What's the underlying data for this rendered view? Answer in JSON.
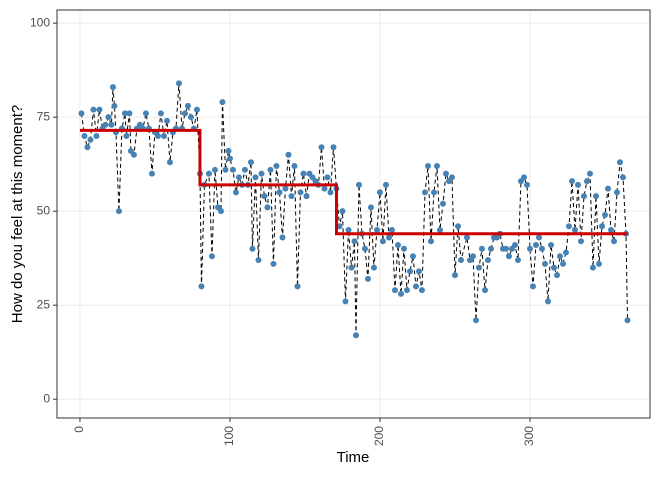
{
  "chart_data": {
    "type": "line",
    "x_label": "Time",
    "y_label": "How do you feel at this moment?",
    "xlim": [
      -15.3,
      380
    ],
    "ylim": [
      -5,
      103.5
    ],
    "xticks": [
      0,
      100,
      200,
      300
    ],
    "yticks": [
      0,
      25,
      50,
      75,
      100
    ],
    "grid": true,
    "color": "#4682b4",
    "line_color": "#000000",
    "line_dash": true,
    "x": [
      1,
      3,
      5,
      7,
      9,
      11,
      13,
      15,
      17,
      19,
      21,
      22,
      23,
      24,
      26,
      28,
      30,
      31,
      33,
      34,
      36,
      38,
      40,
      42,
      44,
      46,
      48,
      50,
      52,
      54,
      56,
      58,
      60,
      62,
      64,
      66,
      68,
      70,
      72,
      74,
      76,
      78,
      80,
      81,
      83,
      86,
      88,
      90,
      92,
      94,
      95,
      97,
      99,
      100,
      102,
      104,
      106,
      108,
      110,
      112,
      114,
      115,
      117,
      119,
      121,
      123,
      125,
      127,
      129,
      131,
      133,
      135,
      137,
      139,
      141,
      143,
      145,
      147,
      149,
      151,
      153,
      155,
      157,
      159,
      161,
      163,
      165,
      167,
      169,
      171,
      173,
      175,
      177,
      179,
      181,
      183,
      184,
      186,
      188,
      190,
      192,
      194,
      196,
      198,
      200,
      202,
      204,
      206,
      208,
      210,
      212,
      214,
      216,
      218,
      220,
      222,
      224,
      226,
      228,
      230,
      232,
      234,
      236,
      238,
      240,
      242,
      244,
      246,
      248,
      250,
      252,
      254,
      258,
      260,
      262,
      264,
      266,
      268,
      270,
      272,
      274,
      276,
      278,
      280,
      282,
      284,
      286,
      288,
      290,
      292,
      294,
      296,
      298,
      300,
      302,
      304,
      306,
      308,
      310,
      312,
      314,
      316,
      318,
      320,
      322,
      324,
      326,
      328,
      330,
      332,
      334,
      336,
      338,
      340,
      342,
      344,
      346,
      348,
      350,
      352,
      354,
      356,
      358,
      360,
      362,
      364,
      365
    ],
    "values": [
      76,
      70,
      67,
      69,
      77,
      70,
      77,
      72,
      73,
      75,
      73,
      83,
      78,
      71,
      50,
      72,
      76,
      70,
      76,
      66,
      65,
      72,
      73,
      72,
      76,
      72,
      60,
      71,
      70,
      76,
      70,
      74,
      63,
      71,
      72,
      84,
      72,
      76,
      78,
      75,
      72,
      77,
      60,
      30,
      57,
      60,
      38,
      61,
      51,
      50,
      79,
      61,
      66,
      64,
      61,
      55,
      59,
      57,
      61,
      57,
      63,
      40,
      59,
      37,
      60,
      54,
      51,
      61,
      36,
      62,
      55,
      43,
      56,
      65,
      54,
      62,
      30,
      55,
      60,
      54,
      60,
      59,
      58,
      57,
      67,
      56,
      59,
      55,
      67,
      56,
      46,
      50,
      26,
      45,
      35,
      42,
      17,
      57,
      44,
      40,
      32,
      51,
      35,
      45,
      55,
      42,
      57,
      43,
      45,
      29,
      41,
      28,
      40,
      29,
      34,
      38,
      30,
      34,
      29,
      55,
      62,
      42,
      55,
      62,
      45,
      52,
      60,
      58,
      59,
      33,
      46,
      37,
      43,
      37,
      38,
      21,
      35,
      40,
      29,
      37,
      40,
      43,
      43,
      44,
      40,
      40,
      38,
      40,
      41,
      37,
      58,
      59,
      57,
      40,
      30,
      41,
      43,
      40,
      36,
      26,
      41,
      35,
      33,
      38,
      36,
      39,
      46,
      58,
      45,
      57,
      42,
      54,
      58,
      60,
      35,
      54,
      36,
      46,
      49,
      56,
      45,
      42,
      55,
      63,
      59,
      44,
      21
    ],
    "step": {
      "color": "#cc0000",
      "x": [
        0,
        80,
        80,
        171,
        171,
        365
      ],
      "values": [
        71.5,
        71.5,
        57,
        57,
        44,
        44
      ]
    }
  }
}
